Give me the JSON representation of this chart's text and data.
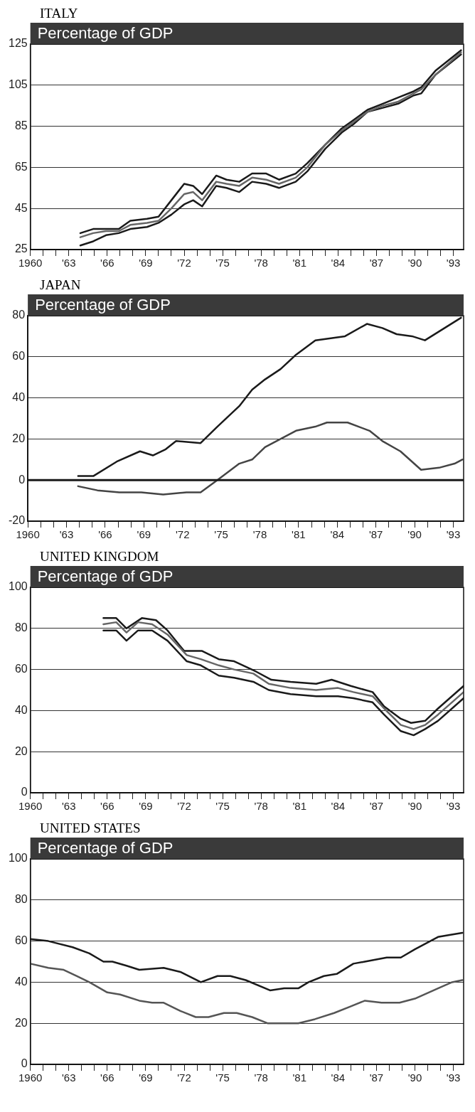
{
  "chart_data": [
    {
      "type": "line",
      "title": "ITALY",
      "subtitle": "Percentage of GDP",
      "xlim": [
        1960,
        1993.8
      ],
      "ylim": [
        25,
        125
      ],
      "yticks": [
        25,
        45,
        65,
        85,
        105,
        125
      ],
      "grid": "y",
      "legend": false,
      "xticks": [
        {
          "value": 1960,
          "label": "1960"
        },
        {
          "value": 1961,
          "label": null
        },
        {
          "value": 1962,
          "label": null
        },
        {
          "value": 1963,
          "label": "'63"
        },
        {
          "value": 1964,
          "label": null
        },
        {
          "value": 1965,
          "label": null
        },
        {
          "value": 1966,
          "label": "'66"
        },
        {
          "value": 1967,
          "label": null
        },
        {
          "value": 1968,
          "label": null
        },
        {
          "value": 1969,
          "label": "'69"
        },
        {
          "value": 1970,
          "label": null
        },
        {
          "value": 1971,
          "label": null
        },
        {
          "value": 1972,
          "label": "'72"
        },
        {
          "value": 1973,
          "label": null
        },
        {
          "value": 1974,
          "label": null
        },
        {
          "value": 1975,
          "label": "'75"
        },
        {
          "value": 1976,
          "label": null
        },
        {
          "value": 1977,
          "label": null
        },
        {
          "value": 1978,
          "label": "'78"
        },
        {
          "value": 1979,
          "label": null
        },
        {
          "value": 1980,
          "label": null
        },
        {
          "value": 1981,
          "label": "'81"
        },
        {
          "value": 1982,
          "label": null
        },
        {
          "value": 1983,
          "label": null
        },
        {
          "value": 1984,
          "label": "'84"
        },
        {
          "value": 1985,
          "label": null
        },
        {
          "value": 1986,
          "label": null
        },
        {
          "value": 1987,
          "label": "'87"
        },
        {
          "value": 1988,
          "label": null
        },
        {
          "value": 1989,
          "label": null
        },
        {
          "value": 1990,
          "label": "'90"
        },
        {
          "value": 1991,
          "label": null
        },
        {
          "value": 1992,
          "label": null
        },
        {
          "value": 1993,
          "label": "'93"
        }
      ],
      "x": [
        1963.9,
        1964.9,
        1965.9,
        1966.9,
        1967.8,
        1969.1,
        1970.0,
        1971.0,
        1972.0,
        1972.7,
        1973.4,
        1974.5,
        1975.3,
        1976.3,
        1977.3,
        1978.4,
        1979.4,
        1980.7,
        1981.6,
        1983.0,
        1984.3,
        1985.2,
        1986.3,
        1987.5,
        1988.7,
        1989.9,
        1990.5,
        1991.6,
        1993.6
      ],
      "series": [
        {
          "color": "#666666",
          "values": [
            31,
            33,
            34,
            34,
            37,
            38,
            39,
            45,
            52,
            53,
            49,
            58,
            57,
            56,
            60,
            59,
            57,
            60,
            65,
            76,
            83,
            87,
            92,
            95,
            97,
            101,
            103,
            110,
            121
          ]
        },
        {
          "color": "#1a1a1a",
          "values": [
            33,
            35,
            35,
            35,
            39,
            40,
            41,
            49,
            57,
            56,
            52,
            61,
            59,
            58,
            62,
            62,
            59,
            62,
            67,
            76,
            84,
            88,
            93,
            96,
            99,
            102,
            104,
            112,
            122
          ]
        },
        {
          "color": "#1a1a1a",
          "values": [
            27,
            29,
            32,
            33,
            35,
            36,
            38,
            42,
            47,
            49,
            46,
            56,
            55,
            53,
            58,
            57,
            55,
            58,
            63,
            74,
            82,
            86,
            92,
            94,
            96,
            100,
            101,
            110,
            120
          ]
        }
      ]
    },
    {
      "type": "line",
      "title": "JAPAN",
      "subtitle": "Percentage of GDP",
      "xlim": [
        1960,
        1993.8
      ],
      "ylim": [
        -20,
        80
      ],
      "yticks": [
        -20,
        0,
        20,
        40,
        60,
        80
      ],
      "grid": "y",
      "legend": false,
      "xticks": [
        {
          "value": 1960,
          "label": "1960"
        },
        {
          "value": 1961,
          "label": null
        },
        {
          "value": 1962,
          "label": null
        },
        {
          "value": 1963,
          "label": "'63"
        },
        {
          "value": 1964,
          "label": null
        },
        {
          "value": 1965,
          "label": null
        },
        {
          "value": 1966,
          "label": "'66"
        },
        {
          "value": 1967,
          "label": null
        },
        {
          "value": 1968,
          "label": null
        },
        {
          "value": 1969,
          "label": "'69"
        },
        {
          "value": 1970,
          "label": null
        },
        {
          "value": 1971,
          "label": null
        },
        {
          "value": 1972,
          "label": "'72"
        },
        {
          "value": 1973,
          "label": null
        },
        {
          "value": 1974,
          "label": null
        },
        {
          "value": 1975,
          "label": "'75"
        },
        {
          "value": 1976,
          "label": null
        },
        {
          "value": 1977,
          "label": null
        },
        {
          "value": 1978,
          "label": "'78"
        },
        {
          "value": 1979,
          "label": null
        },
        {
          "value": 1980,
          "label": null
        },
        {
          "value": 1981,
          "label": "'81"
        },
        {
          "value": 1982,
          "label": null
        },
        {
          "value": 1983,
          "label": null
        },
        {
          "value": 1984,
          "label": "'84"
        },
        {
          "value": 1985,
          "label": null
        },
        {
          "value": 1986,
          "label": null
        },
        {
          "value": 1987,
          "label": "'87"
        },
        {
          "value": 1988,
          "label": null
        },
        {
          "value": 1989,
          "label": null
        },
        {
          "value": 1990,
          "label": "'90"
        },
        {
          "value": 1991,
          "label": null
        },
        {
          "value": 1992,
          "label": null
        },
        {
          "value": 1993,
          "label": "'93"
        }
      ],
      "ref_lines": [
        {
          "axis": "y",
          "value": 0,
          "color": "#1a1a1a"
        }
      ],
      "series": [
        {
          "color": "#1a1a1a",
          "x": [
            1963.9,
            1965.1,
            1966.9,
            1968.7,
            1969.7,
            1970.7,
            1971.5,
            1973.4,
            1974.7,
            1976.4,
            1977.4,
            1978.4,
            1979.6,
            1980.8,
            1982.3,
            1983.5,
            1984.6,
            1986.3,
            1987.5,
            1988.6,
            1989.8,
            1990.8,
            1993.6
          ],
          "values": [
            2,
            2,
            9,
            14,
            12,
            15,
            19,
            18,
            26,
            36,
            44,
            49,
            54,
            61,
            68,
            69,
            70,
            76,
            74,
            71,
            70,
            68,
            79
          ]
        },
        {
          "color": "#444444",
          "x": [
            1963.9,
            1965.4,
            1967.1,
            1968.8,
            1970.5,
            1972.3,
            1973.4,
            1974.7,
            1976.4,
            1977.4,
            1978.4,
            1979.6,
            1980.8,
            1982.3,
            1983.2,
            1984.8,
            1986.5,
            1987.5,
            1988.9,
            1990.5,
            1991.9,
            1993.1,
            1993.7
          ],
          "values": [
            -3,
            -5,
            -6,
            -6,
            -7,
            -6,
            -6,
            0,
            8,
            10,
            16,
            20,
            24,
            26,
            28,
            28,
            24,
            19,
            14,
            5,
            6,
            8,
            10
          ]
        }
      ]
    },
    {
      "type": "line",
      "title": "UNITED KINGDOM",
      "subtitle": "Percentage of GDP",
      "xlim": [
        1960,
        1993.8
      ],
      "ylim": [
        0,
        100
      ],
      "yticks": [
        0,
        20,
        40,
        60,
        80,
        100
      ],
      "grid": "y",
      "legend": false,
      "xticks": [
        {
          "value": 1960,
          "label": "1960"
        },
        {
          "value": 1961,
          "label": null
        },
        {
          "value": 1962,
          "label": null
        },
        {
          "value": 1963,
          "label": "'63"
        },
        {
          "value": 1964,
          "label": null
        },
        {
          "value": 1965,
          "label": null
        },
        {
          "value": 1966,
          "label": "'66"
        },
        {
          "value": 1967,
          "label": null
        },
        {
          "value": 1968,
          "label": null
        },
        {
          "value": 1969,
          "label": "'69"
        },
        {
          "value": 1970,
          "label": null
        },
        {
          "value": 1971,
          "label": null
        },
        {
          "value": 1972,
          "label": "'72"
        },
        {
          "value": 1973,
          "label": null
        },
        {
          "value": 1974,
          "label": null
        },
        {
          "value": 1975,
          "label": "'75"
        },
        {
          "value": 1976,
          "label": null
        },
        {
          "value": 1977,
          "label": null
        },
        {
          "value": 1978,
          "label": "'78"
        },
        {
          "value": 1979,
          "label": null
        },
        {
          "value": 1980,
          "label": null
        },
        {
          "value": 1981,
          "label": "'81"
        },
        {
          "value": 1982,
          "label": null
        },
        {
          "value": 1983,
          "label": null
        },
        {
          "value": 1984,
          "label": "'84"
        },
        {
          "value": 1985,
          "label": null
        },
        {
          "value": 1986,
          "label": null
        },
        {
          "value": 1987,
          "label": "'87"
        },
        {
          "value": 1988,
          "label": null
        },
        {
          "value": 1989,
          "label": null
        },
        {
          "value": 1990,
          "label": "'90"
        },
        {
          "value": 1991,
          "label": null
        },
        {
          "value": 1992,
          "label": null
        },
        {
          "value": 1993,
          "label": "'93"
        }
      ],
      "series": [
        {
          "color": "#666666",
          "x": [
            1965.7,
            1966.7,
            1967.5,
            1968.4,
            1969.5,
            1970.7,
            1972.2,
            1973.3,
            1974.7,
            1975.9,
            1977.4,
            1978.6,
            1980.3,
            1982.3,
            1984.0,
            1985.2,
            1986.7,
            1987.6,
            1988.9,
            1989.9,
            1990.8,
            1991.8,
            1993.8
          ],
          "values": [
            82,
            83,
            78,
            83,
            82,
            77,
            67,
            65,
            62,
            60,
            58,
            53,
            51,
            50,
            51,
            49,
            47,
            41,
            33,
            31,
            33,
            38,
            49
          ]
        },
        {
          "color": "#1a1a1a",
          "x": [
            1965.7,
            1966.7,
            1967.5,
            1968.7,
            1969.8,
            1970.7,
            1972.0,
            1972.6,
            1973.4,
            1974.7,
            1975.9,
            1977.6,
            1978.8,
            1980.3,
            1982.3,
            1983.5,
            1985.0,
            1986.7,
            1987.6,
            1988.9,
            1989.7,
            1990.8,
            1991.8,
            1993.8
          ],
          "values": [
            85,
            85,
            80,
            85,
            84,
            79,
            69,
            69,
            69,
            65,
            64,
            59,
            55,
            54,
            53,
            55,
            52,
            49,
            42,
            36,
            34,
            35,
            41,
            52
          ]
        },
        {
          "color": "#1a1a1a",
          "x": [
            1965.7,
            1966.7,
            1967.5,
            1968.4,
            1969.5,
            1970.7,
            1972.2,
            1973.3,
            1974.7,
            1975.9,
            1977.4,
            1978.6,
            1980.3,
            1982.3,
            1984.0,
            1985.2,
            1986.7,
            1987.6,
            1988.9,
            1989.9,
            1990.8,
            1991.8,
            1993.8
          ],
          "values": [
            79,
            79,
            74,
            79,
            79,
            74,
            64,
            62,
            57,
            56,
            54,
            50,
            48,
            47,
            47,
            46,
            44,
            38,
            30,
            28,
            31,
            35,
            46
          ]
        }
      ]
    },
    {
      "type": "line",
      "title": "UNITED STATES",
      "subtitle": "Percentage of GDP",
      "xlim": [
        1960,
        1993.8
      ],
      "ylim": [
        0,
        100
      ],
      "yticks": [
        0,
        20,
        40,
        60,
        80,
        100
      ],
      "grid": "y",
      "legend": false,
      "xticks": [
        {
          "value": 1960,
          "label": "1960"
        },
        {
          "value": 1961,
          "label": null
        },
        {
          "value": 1962,
          "label": null
        },
        {
          "value": 1963,
          "label": "'63"
        },
        {
          "value": 1964,
          "label": null
        },
        {
          "value": 1965,
          "label": null
        },
        {
          "value": 1966,
          "label": "'66"
        },
        {
          "value": 1967,
          "label": null
        },
        {
          "value": 1968,
          "label": null
        },
        {
          "value": 1969,
          "label": "'69"
        },
        {
          "value": 1970,
          "label": null
        },
        {
          "value": 1971,
          "label": null
        },
        {
          "value": 1972,
          "label": "'72"
        },
        {
          "value": 1973,
          "label": null
        },
        {
          "value": 1974,
          "label": null
        },
        {
          "value": 1975,
          "label": "'75"
        },
        {
          "value": 1976,
          "label": null
        },
        {
          "value": 1977,
          "label": null
        },
        {
          "value": 1978,
          "label": "'78"
        },
        {
          "value": 1979,
          "label": null
        },
        {
          "value": 1980,
          "label": null
        },
        {
          "value": 1981,
          "label": "'81"
        },
        {
          "value": 1982,
          "label": null
        },
        {
          "value": 1983,
          "label": null
        },
        {
          "value": 1984,
          "label": "'84"
        },
        {
          "value": 1985,
          "label": null
        },
        {
          "value": 1986,
          "label": null
        },
        {
          "value": 1987,
          "label": "'87"
        },
        {
          "value": 1988,
          "label": null
        },
        {
          "value": 1989,
          "label": null
        },
        {
          "value": 1990,
          "label": "'90"
        },
        {
          "value": 1991,
          "label": null
        },
        {
          "value": 1992,
          "label": null
        },
        {
          "value": 1993,
          "label": "'93"
        }
      ],
      "series": [
        {
          "color": "#1a1a1a",
          "x": [
            1960,
            1961.4,
            1963.3,
            1964.6,
            1965.7,
            1966.4,
            1967.5,
            1968.5,
            1970.4,
            1971.7,
            1973.3,
            1974.6,
            1975.6,
            1976.8,
            1978.7,
            1979.8,
            1980.9,
            1981.7,
            1982.9,
            1983.9,
            1985.2,
            1986.1,
            1987.8,
            1988.9,
            1990.0,
            1991.8,
            1992.7,
            1993.7
          ],
          "values": [
            61,
            60,
            57,
            54,
            50,
            50,
            48,
            46,
            47,
            45,
            40,
            43,
            43,
            41,
            36,
            37,
            37,
            40,
            43,
            44,
            49,
            50,
            52,
            52,
            56,
            62,
            63,
            64
          ]
        },
        {
          "color": "#555555",
          "x": [
            1960,
            1961.4,
            1962.6,
            1963.6,
            1964.6,
            1966.0,
            1967.0,
            1968.5,
            1969.5,
            1970.4,
            1971.7,
            1972.9,
            1973.9,
            1975.1,
            1976.1,
            1977.3,
            1978.5,
            1979.8,
            1980.9,
            1982.2,
            1983.7,
            1984.9,
            1986.1,
            1987.4,
            1988.8,
            1990.0,
            1991.8,
            1992.9,
            1993.7
          ],
          "values": [
            49,
            47,
            46,
            43,
            40,
            35,
            34,
            31,
            30,
            30,
            26,
            23,
            23,
            25,
            25,
            23,
            20,
            20,
            20,
            22,
            25,
            28,
            31,
            30,
            30,
            32,
            37,
            40,
            41
          ]
        }
      ]
    }
  ]
}
